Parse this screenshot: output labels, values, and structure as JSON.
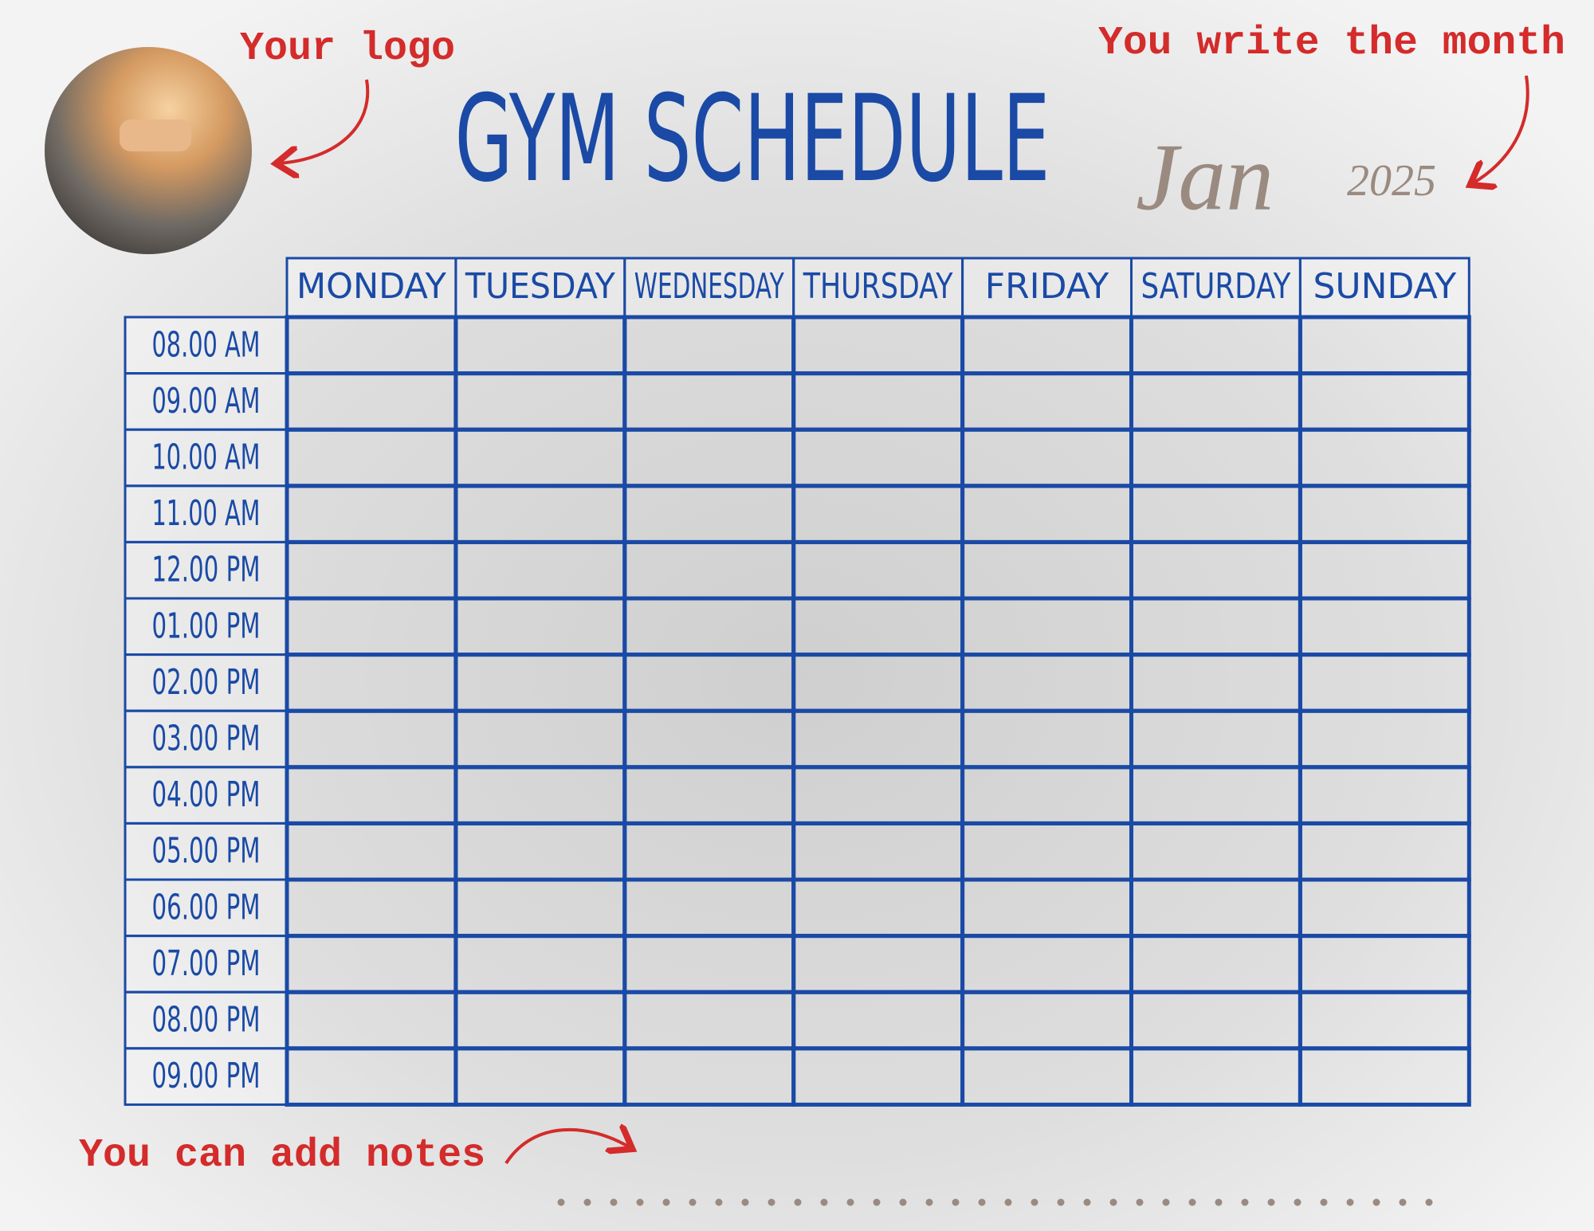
{
  "header": {
    "title": "GYM SCHEDULE",
    "logo_note": "Your logo",
    "month_note": "You write the month",
    "month": "Jan",
    "year": "2025"
  },
  "table": {
    "days": [
      "MONDAY",
      "TUESDAY",
      "WEDNESDAY",
      "THURSDAY",
      "FRIDAY",
      "SATURDAY",
      "SUNDAY"
    ],
    "times": [
      "08.00 AM",
      "09.00 AM",
      "10.00 AM",
      "11.00 AM",
      "12.00 PM",
      "01.00 PM",
      "02.00 PM",
      "03.00 PM",
      "04.00 PM",
      "05.00 PM",
      "06.00 PM",
      "07.00 PM",
      "08.00 PM",
      "09.00 PM"
    ]
  },
  "footer": {
    "notes_note": "You can add notes"
  }
}
